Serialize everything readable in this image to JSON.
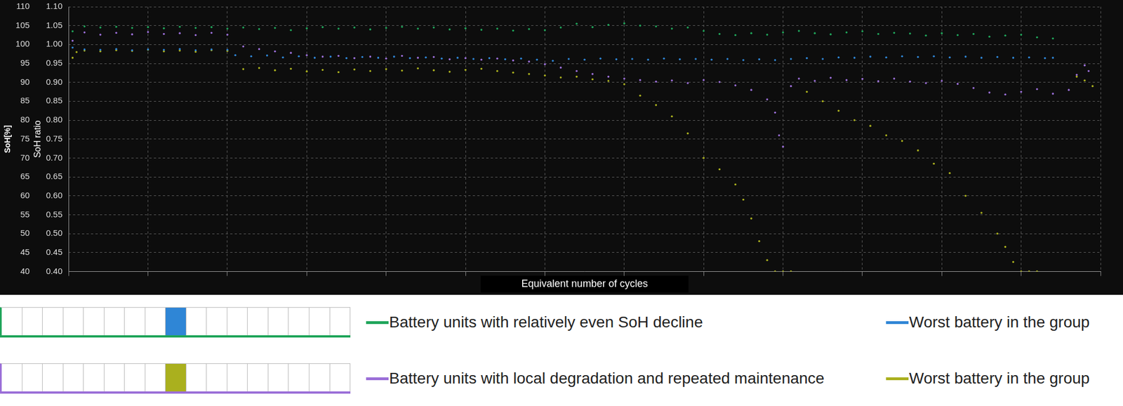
{
  "chart_data": {
    "type": "scatter",
    "x_label": "Equivalent number of cycles",
    "y_label": "SoH[%]",
    "y2_label": "SoH ratio",
    "xlim": [
      0,
      13
    ],
    "xticks": [
      0,
      1,
      2,
      3,
      4,
      5,
      6,
      7,
      8,
      9,
      10,
      11,
      12,
      13
    ],
    "ylim": [
      40,
      110
    ],
    "yticks": [
      40,
      45,
      50,
      55,
      60,
      65,
      70,
      75,
      80,
      85,
      90,
      95,
      100,
      105,
      110
    ],
    "y2lim": [
      0.4,
      1.1
    ],
    "y2ticks": [
      {
        "value": 0.4,
        "label": "0.40"
      },
      {
        "value": 0.45,
        "label": "0.45"
      },
      {
        "value": 0.5,
        "label": "0.50"
      },
      {
        "value": 0.55,
        "label": "0.55"
      },
      {
        "value": 0.6,
        "label": "0.60"
      },
      {
        "value": 0.65,
        "label": "0.65"
      },
      {
        "value": 0.7,
        "label": "0.70"
      },
      {
        "value": 0.75,
        "label": "0.75"
      },
      {
        "value": 0.8,
        "label": "0.80"
      },
      {
        "value": 0.85,
        "label": "0.85"
      },
      {
        "value": 0.9,
        "label": "0.90"
      },
      {
        "value": 0.95,
        "label": "0.95"
      },
      {
        "value": 1.0,
        "label": "1.00"
      },
      {
        "value": 1.05,
        "label": "1.05"
      },
      {
        "value": 1.1,
        "label": "1.10"
      }
    ],
    "grid": true,
    "legend": "bottom",
    "tick_labels": "y",
    "marker": "circle",
    "series": [
      {
        "name": "Battery units with relatively even SoH decline",
        "color": "#1fa55a",
        "x": [
          0.05,
          0.2,
          0.4,
          0.6,
          0.8,
          1.0,
          1.2,
          1.4,
          1.6,
          1.8,
          2.0,
          2.2,
          2.4,
          2.6,
          2.8,
          3.0,
          3.2,
          3.4,
          3.6,
          3.8,
          4.0,
          4.2,
          4.4,
          4.6,
          4.8,
          5.0,
          5.2,
          5.4,
          5.6,
          5.8,
          6.0,
          6.2,
          6.4,
          6.6,
          6.8,
          7.0,
          7.2,
          7.4,
          7.6,
          7.8,
          8.0,
          8.2,
          8.4,
          8.6,
          8.8,
          9.0,
          9.2,
          9.4,
          9.6,
          9.8,
          10.0,
          10.2,
          10.4,
          10.6,
          10.8,
          11.0,
          11.2,
          11.4,
          11.6,
          11.8,
          12.0,
          12.2,
          12.4
        ],
        "values": [
          103.5,
          104.8,
          104.5,
          104.7,
          104.4,
          104.6,
          104.3,
          104.7,
          104.4,
          104.6,
          104.2,
          104.5,
          104.1,
          104.4,
          103.8,
          104.3,
          104.6,
          104.2,
          104.5,
          104.0,
          104.4,
          104.7,
          104.2,
          104.5,
          104.0,
          104.3,
          103.9,
          104.2,
          103.7,
          104.1,
          103.8,
          104.5,
          105.5,
          104.6,
          105.2,
          105.6,
          105.0,
          104.8,
          104.2,
          104.5,
          103.6,
          102.8,
          102.5,
          103.0,
          102.6,
          103.2,
          103.6,
          103.0,
          102.7,
          103.2,
          103.5,
          102.8,
          103.1,
          102.9,
          102.4,
          103.0,
          102.5,
          102.8,
          102.1,
          102.4,
          102.6,
          101.9,
          101.6
        ]
      },
      {
        "name": "Worst battery in the group",
        "color": "#2f86d6",
        "x": [
          0.05,
          0.2,
          0.4,
          0.6,
          0.8,
          1.0,
          1.2,
          1.4,
          1.6,
          1.8,
          2.0,
          2.1,
          2.3,
          2.5,
          2.7,
          2.9,
          3.1,
          3.3,
          3.5,
          3.7,
          3.9,
          4.1,
          4.3,
          4.5,
          4.7,
          4.9,
          5.1,
          5.3,
          5.5,
          5.7,
          5.9,
          6.1,
          6.3,
          6.5,
          6.7,
          6.9,
          7.1,
          7.3,
          7.5,
          7.7,
          7.9,
          8.1,
          8.3,
          8.5,
          8.7,
          8.9,
          9.1,
          9.3,
          9.5,
          9.7,
          9.9,
          10.1,
          10.3,
          10.5,
          10.7,
          10.9,
          11.1,
          11.3,
          11.5,
          11.7,
          11.9,
          12.1,
          12.3,
          12.4
        ],
        "values": [
          99.2,
          98.7,
          98.6,
          98.8,
          98.5,
          98.7,
          98.6,
          98.8,
          98.5,
          98.7,
          98.6,
          97.2,
          96.9,
          97.1,
          96.6,
          96.9,
          96.5,
          96.8,
          96.4,
          96.7,
          96.5,
          96.8,
          96.4,
          96.6,
          96.3,
          96.5,
          96.2,
          96.4,
          96.1,
          96.3,
          96.0,
          95.7,
          96.2,
          96.0,
          96.3,
          96.1,
          96.2,
          96.0,
          96.3,
          96.1,
          96.2,
          96.0,
          96.2,
          95.9,
          96.1,
          95.9,
          96.2,
          96.4,
          96.2,
          96.6,
          96.5,
          96.8,
          96.6,
          96.9,
          96.7,
          96.9,
          96.6,
          96.8,
          96.5,
          96.7,
          96.5,
          96.6,
          96.4,
          96.5
        ]
      },
      {
        "name": "Battery units with local degradation and repeated maintenance",
        "color": "#9b6fd8",
        "x": [
          0.05,
          0.2,
          0.4,
          0.6,
          0.8,
          1.0,
          1.2,
          1.4,
          1.6,
          1.8,
          2.0,
          2.2,
          2.4,
          2.6,
          2.8,
          3.0,
          3.2,
          3.4,
          3.6,
          3.8,
          4.0,
          4.2,
          4.4,
          4.6,
          4.8,
          5.0,
          5.2,
          5.4,
          5.6,
          5.8,
          6.0,
          6.2,
          6.4,
          6.6,
          6.8,
          7.0,
          7.2,
          7.4,
          7.6,
          7.8,
          8.0,
          8.2,
          8.4,
          8.6,
          8.8,
          8.9,
          8.95,
          9.0,
          9.1,
          9.2,
          9.4,
          9.6,
          9.8,
          10.0,
          10.2,
          10.4,
          10.6,
          10.8,
          11.0,
          11.2,
          11.4,
          11.6,
          11.8,
          12.0,
          12.2,
          12.4,
          12.6,
          12.7,
          12.8,
          12.85
        ],
        "values": [
          101.0,
          103.2,
          102.6,
          103.1,
          102.7,
          103.3,
          102.8,
          103.0,
          102.5,
          103.1,
          102.6,
          99.5,
          98.8,
          98.2,
          97.8,
          97.2,
          96.8,
          97.0,
          96.4,
          96.8,
          96.3,
          97.0,
          96.5,
          96.7,
          96.1,
          96.4,
          96.0,
          96.3,
          95.8,
          95.5,
          94.8,
          93.9,
          93.0,
          92.2,
          91.5,
          91.0,
          90.6,
          90.2,
          90.5,
          89.8,
          90.6,
          90.1,
          89.2,
          88.0,
          85.5,
          82.0,
          76.0,
          73.0,
          89.0,
          91.0,
          90.4,
          91.2,
          90.6,
          90.9,
          90.3,
          91.0,
          90.2,
          89.8,
          90.4,
          89.6,
          88.5,
          87.3,
          86.8,
          87.5,
          88.2,
          87.0,
          88.0,
          92.0,
          94.5,
          93.0
        ]
      },
      {
        "name": "Worst battery in the group",
        "color": "#aab01e",
        "x": [
          0.05,
          0.1,
          0.2,
          0.4,
          0.6,
          0.8,
          1.0,
          1.2,
          1.4,
          1.6,
          1.8,
          2.0,
          2.2,
          2.4,
          2.6,
          2.8,
          3.0,
          3.2,
          3.4,
          3.6,
          3.8,
          4.0,
          4.2,
          4.4,
          4.6,
          4.8,
          5.0,
          5.2,
          5.4,
          5.6,
          5.8,
          6.0,
          6.2,
          6.4,
          6.6,
          6.8,
          7.0,
          7.2,
          7.4,
          7.6,
          7.8,
          8.0,
          8.2,
          8.4,
          8.5,
          8.6,
          8.7,
          8.8,
          8.9,
          9.0,
          9.1,
          9.3,
          9.5,
          9.7,
          9.9,
          10.1,
          10.3,
          10.5,
          10.7,
          10.9,
          11.1,
          11.3,
          11.5,
          11.7,
          11.8,
          11.9,
          12.0,
          12.1,
          12.2,
          12.7,
          12.8,
          12.9
        ],
        "values": [
          96.5,
          98.0,
          98.4,
          98.2,
          98.5,
          98.3,
          98.6,
          98.2,
          98.4,
          98.1,
          98.5,
          98.3,
          93.5,
          93.8,
          93.2,
          93.6,
          92.9,
          93.3,
          92.7,
          93.4,
          93.0,
          93.5,
          93.1,
          93.7,
          93.2,
          92.8,
          93.3,
          93.6,
          93.0,
          92.6,
          92.2,
          91.8,
          91.3,
          91.5,
          90.8,
          90.4,
          89.5,
          86.5,
          84.0,
          81.0,
          76.5,
          70.0,
          67.0,
          63.0,
          59.0,
          54.0,
          48.0,
          43.0,
          40.0,
          40.0,
          40.0,
          87.5,
          85.0,
          82.5,
          80.0,
          78.5,
          76.0,
          74.5,
          72.0,
          68.5,
          66.0,
          60.0,
          55.5,
          50.0,
          46.5,
          42.5,
          40.0,
          40.0,
          40.0,
          91.5,
          90.5,
          89.0
        ]
      }
    ]
  }
}
